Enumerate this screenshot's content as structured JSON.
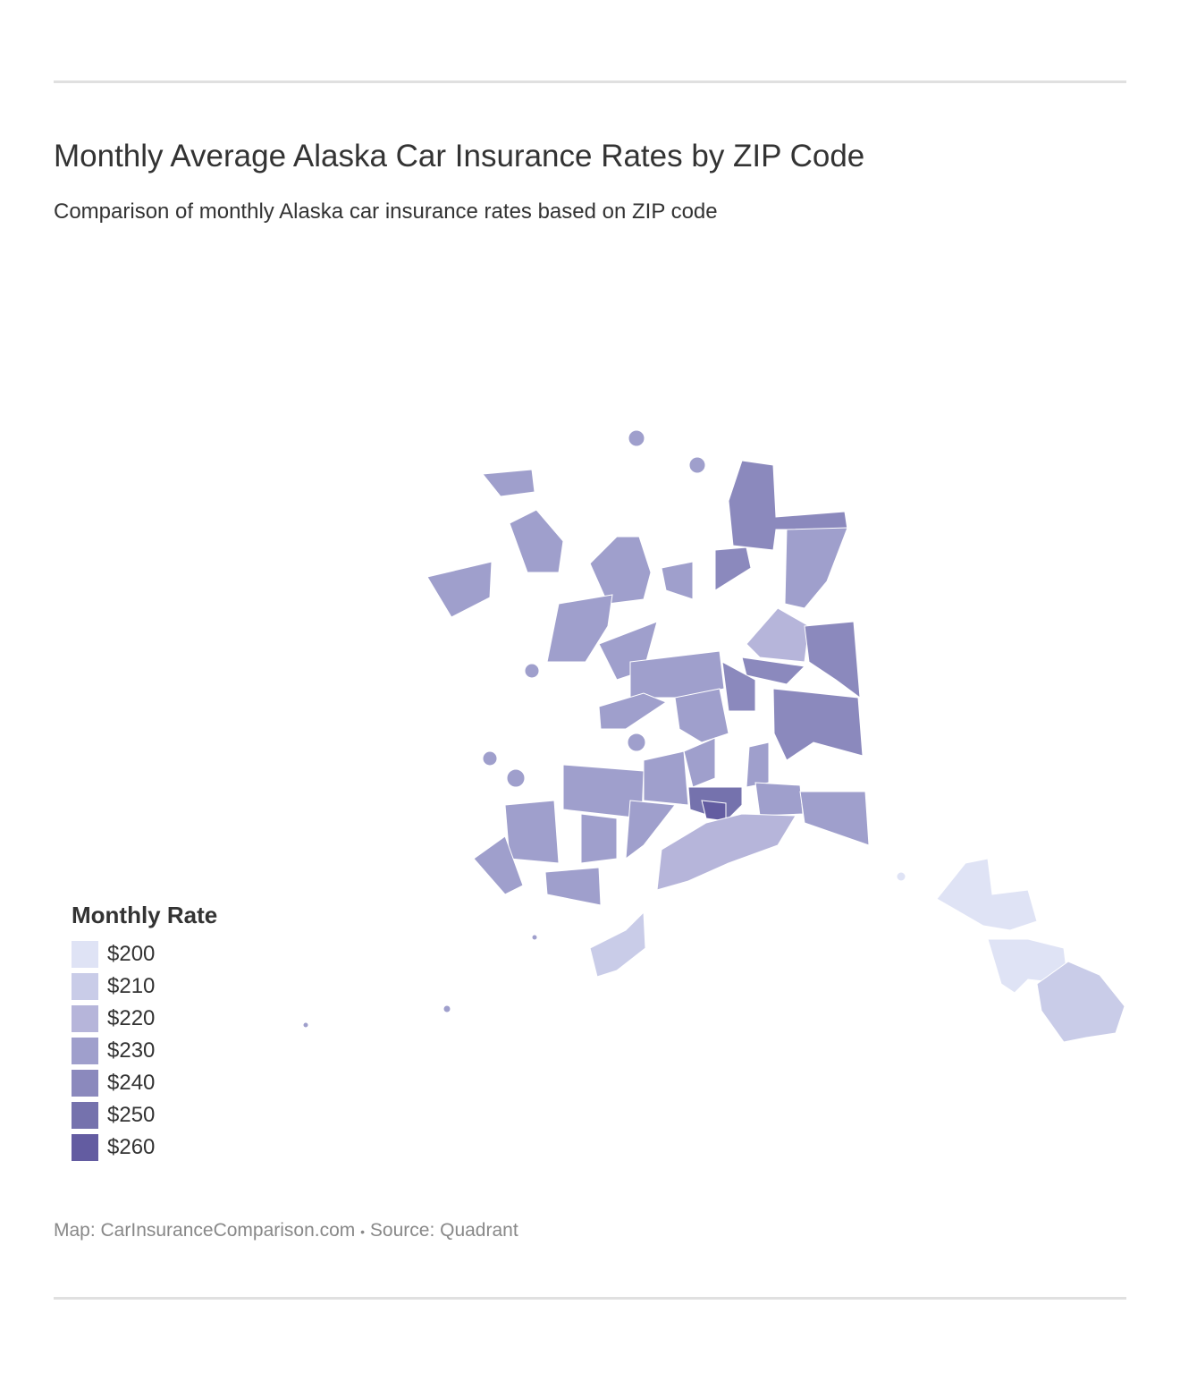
{
  "title": "Monthly Average Alaska Car Insurance Rates by ZIP Code",
  "subtitle": "Comparison of monthly Alaska car insurance rates based on ZIP code",
  "legend": {
    "title": "Monthly Rate",
    "items": [
      {
        "label": "$200",
        "color": "#dfe3f5"
      },
      {
        "label": "$210",
        "color": "#c9cce8"
      },
      {
        "label": "$220",
        "color": "#b6b5da"
      },
      {
        "label": "$230",
        "color": "#9f9fcc"
      },
      {
        "label": "$240",
        "color": "#8b89bd"
      },
      {
        "label": "$250",
        "color": "#7572ad"
      },
      {
        "label": "$260",
        "color": "#635ca1"
      }
    ]
  },
  "footer": {
    "map_credit": "Map: CarInsuranceComparison.com",
    "separator": "•",
    "source": "Source: Quadrant"
  }
}
